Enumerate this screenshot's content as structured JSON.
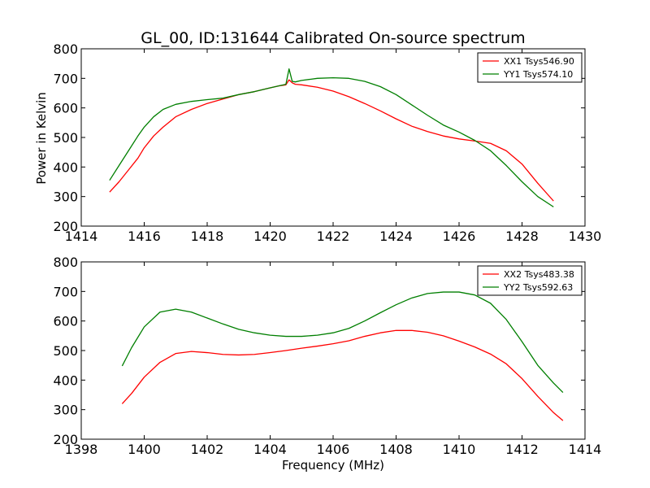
{
  "chart_data": [
    {
      "type": "line",
      "title": "GL_00, ID:131644 Calibrated On-source spectrum",
      "xlabel": "",
      "ylabel": "Power in Kelvin",
      "xlim": [
        1414,
        1430
      ],
      "ylim": [
        200,
        800
      ],
      "xticks": [
        1414,
        1416,
        1418,
        1420,
        1422,
        1424,
        1426,
        1428,
        1430
      ],
      "yticks": [
        200,
        300,
        400,
        500,
        600,
        700,
        800
      ],
      "legend_position": "top-right",
      "series": [
        {
          "name": "XX1 Tsys546.90",
          "color": "#ff0000",
          "x": [
            1414.9,
            1415.2,
            1415.5,
            1415.8,
            1416.0,
            1416.3,
            1416.6,
            1417.0,
            1417.5,
            1418.0,
            1418.5,
            1419.0,
            1419.5,
            1420.0,
            1420.3,
            1420.5,
            1420.6,
            1420.7,
            1420.8,
            1421.0,
            1421.5,
            1422.0,
            1422.5,
            1423.0,
            1423.5,
            1424.0,
            1424.5,
            1425.0,
            1425.5,
            1426.0,
            1426.5,
            1427.0,
            1427.5,
            1428.0,
            1428.5,
            1429.0
          ],
          "values": [
            315,
            350,
            390,
            430,
            465,
            505,
            535,
            570,
            595,
            615,
            630,
            645,
            655,
            668,
            675,
            678,
            695,
            685,
            680,
            678,
            670,
            657,
            638,
            615,
            590,
            563,
            538,
            520,
            505,
            495,
            488,
            480,
            455,
            410,
            345,
            285
          ]
        },
        {
          "name": "YY1 Tsys574.10",
          "color": "#007f00",
          "x": [
            1414.9,
            1415.2,
            1415.5,
            1415.8,
            1416.0,
            1416.3,
            1416.6,
            1417.0,
            1417.5,
            1418.0,
            1418.5,
            1419.0,
            1419.5,
            1420.0,
            1420.3,
            1420.5,
            1420.6,
            1420.7,
            1420.8,
            1421.0,
            1421.5,
            1422.0,
            1422.5,
            1423.0,
            1423.5,
            1424.0,
            1424.5,
            1425.0,
            1425.5,
            1426.0,
            1426.5,
            1427.0,
            1427.5,
            1428.0,
            1428.5,
            1429.0
          ],
          "values": [
            355,
            405,
            455,
            505,
            535,
            570,
            595,
            612,
            622,
            628,
            633,
            645,
            655,
            668,
            675,
            680,
            732,
            690,
            688,
            693,
            700,
            702,
            700,
            690,
            672,
            645,
            610,
            575,
            542,
            518,
            490,
            455,
            405,
            350,
            300,
            265
          ]
        }
      ]
    },
    {
      "type": "line",
      "title": "",
      "xlabel": "Frequency (MHz)",
      "ylabel": "",
      "xlim": [
        1398,
        1414
      ],
      "ylim": [
        200,
        800
      ],
      "xticks": [
        1398,
        1400,
        1402,
        1404,
        1406,
        1408,
        1410,
        1412,
        1414
      ],
      "yticks": [
        200,
        300,
        400,
        500,
        600,
        700,
        800
      ],
      "legend_position": "top-right",
      "series": [
        {
          "name": "XX2 Tsys483.38",
          "color": "#ff0000",
          "x": [
            1399.3,
            1399.6,
            1400.0,
            1400.5,
            1401.0,
            1401.5,
            1402.0,
            1402.5,
            1403.0,
            1403.5,
            1404.0,
            1404.5,
            1405.0,
            1405.5,
            1406.0,
            1406.5,
            1407.0,
            1407.5,
            1408.0,
            1408.5,
            1409.0,
            1409.5,
            1410.0,
            1410.5,
            1411.0,
            1411.5,
            1412.0,
            1412.5,
            1413.0,
            1413.3
          ],
          "values": [
            320,
            355,
            410,
            460,
            490,
            497,
            493,
            487,
            485,
            487,
            493,
            500,
            508,
            515,
            523,
            533,
            548,
            560,
            568,
            568,
            562,
            550,
            532,
            512,
            488,
            455,
            405,
            345,
            290,
            263
          ]
        },
        {
          "name": "YY2 Tsys592.63",
          "color": "#007f00",
          "x": [
            1399.3,
            1399.6,
            1400.0,
            1400.5,
            1401.0,
            1401.5,
            1402.0,
            1402.5,
            1403.0,
            1403.5,
            1404.0,
            1404.5,
            1405.0,
            1405.5,
            1406.0,
            1406.5,
            1407.0,
            1407.5,
            1408.0,
            1408.5,
            1409.0,
            1409.5,
            1410.0,
            1410.5,
            1411.0,
            1411.5,
            1412.0,
            1412.5,
            1413.0,
            1413.3
          ],
          "values": [
            448,
            510,
            580,
            630,
            640,
            630,
            610,
            590,
            572,
            560,
            552,
            548,
            548,
            552,
            560,
            575,
            600,
            628,
            655,
            678,
            693,
            698,
            698,
            688,
            660,
            605,
            530,
            450,
            390,
            358
          ]
        }
      ]
    }
  ]
}
